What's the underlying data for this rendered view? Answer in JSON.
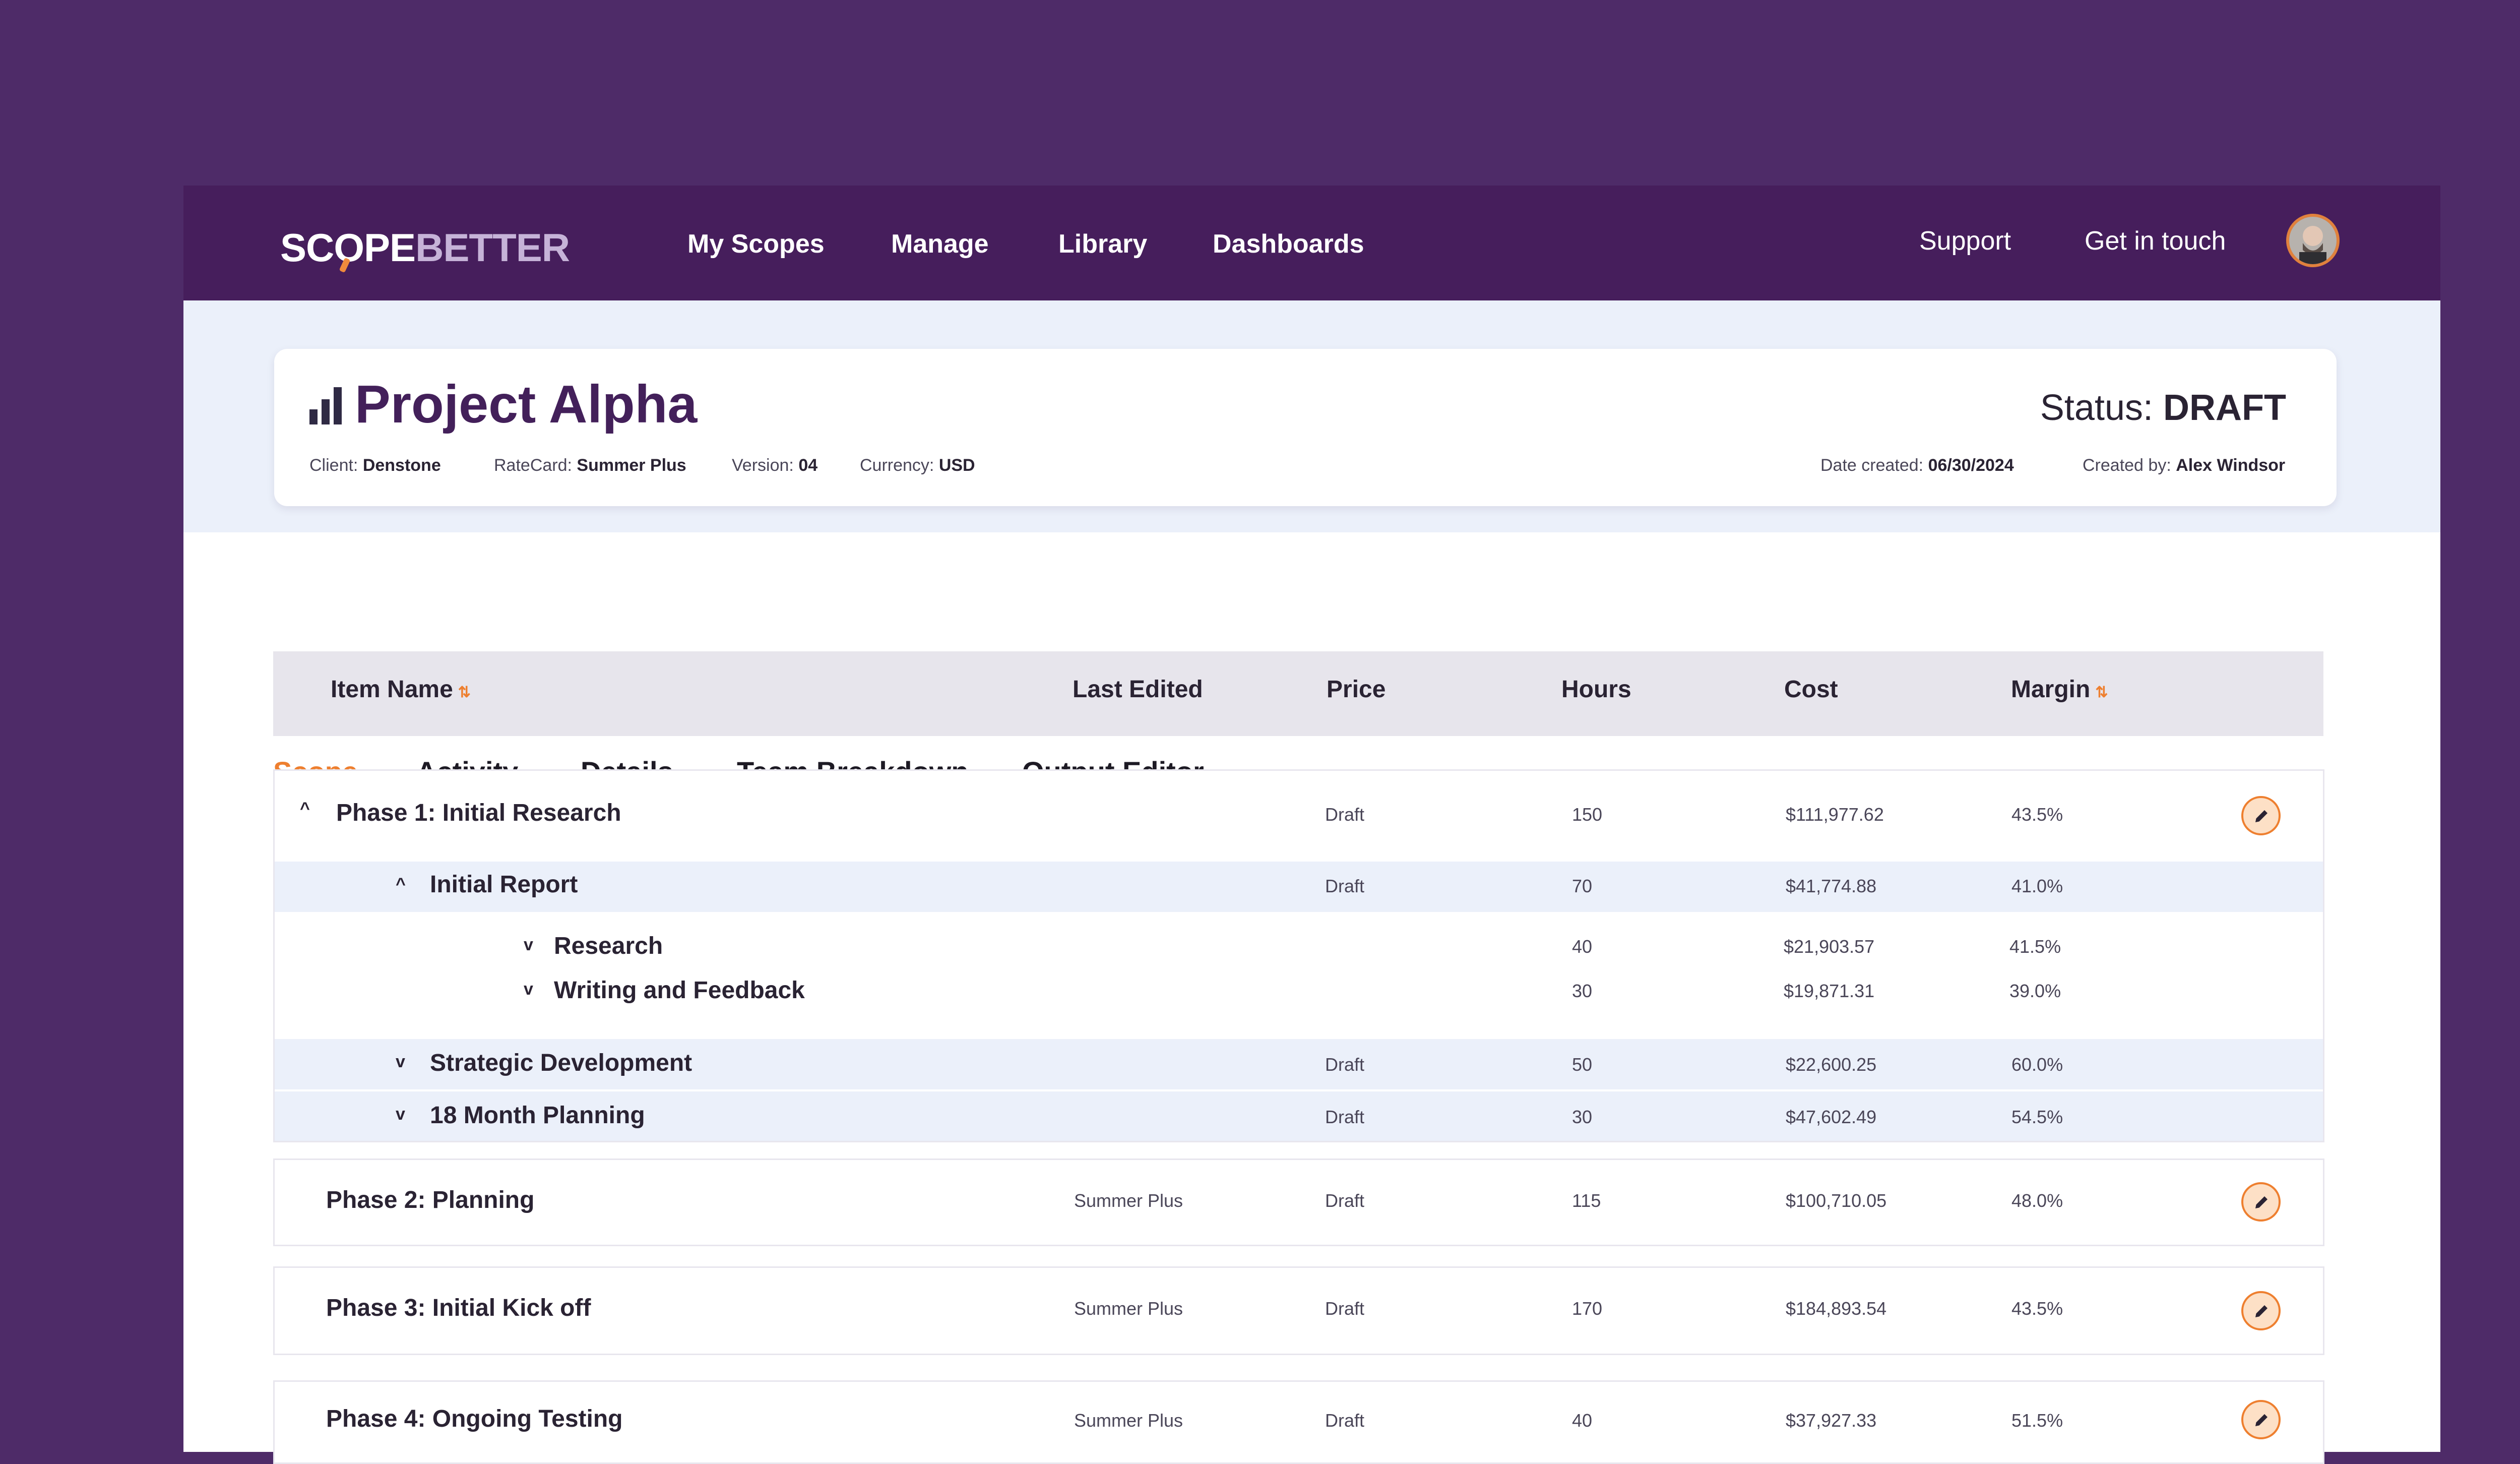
{
  "brand": {
    "part1": "SCOPE",
    "part2": "BETTER"
  },
  "nav": {
    "links": [
      "My Scopes",
      "Manage",
      "Library",
      "Dashboards"
    ],
    "support": "Support",
    "contact": "Get in touch"
  },
  "project": {
    "title": "Project Alpha",
    "status_label": "Status:",
    "status_value": "DRAFT",
    "client_label": "Client:",
    "client": "Denstone",
    "ratecard_label": "RateCard:",
    "ratecard": "Summer Plus",
    "version_label": "Version:",
    "version": "04",
    "currency_label": "Currency:",
    "currency": "USD",
    "date_label": "Date created:",
    "date": "06/30/2024",
    "creator_label": "Created by:",
    "creator": "Alex Windsor"
  },
  "tabs": [
    "Scope",
    "Activity",
    "Details",
    "Team Breakdown",
    "Output Editor"
  ],
  "columns": {
    "name": "Item Name",
    "last_edited": "Last Edited",
    "price": "Price",
    "hours": "Hours",
    "cost": "Cost",
    "margin": "Margin",
    "sort_glyph": "⇅"
  },
  "rows": {
    "phase1": {
      "name": "Phase 1: Initial Research",
      "price": "Draft",
      "hours": "150",
      "cost": "$111,977.62",
      "margin": "43.5%"
    },
    "report": {
      "name": "Initial Report",
      "price": "Draft",
      "hours": "70",
      "cost": "$41,774.88",
      "margin": "41.0%"
    },
    "research": {
      "name": "Research",
      "hours": "40",
      "cost": "$21,903.57",
      "margin": "41.5%"
    },
    "writing": {
      "name": "Writing and Feedback",
      "hours": "30",
      "cost": "$19,871.31",
      "margin": "39.0%"
    },
    "strategic": {
      "name": "Strategic Development",
      "price": "Draft",
      "hours": "50",
      "cost": "$22,600.25",
      "margin": "60.0%"
    },
    "planning18": {
      "name": "18 Month Planning",
      "price": "Draft",
      "hours": "30",
      "cost": "$47,602.49",
      "margin": "54.5%"
    },
    "phase2": {
      "name": "Phase 2: Planning",
      "edited": "Summer Plus",
      "price": "Draft",
      "hours": "115",
      "cost": "$100,710.05",
      "margin": "48.0%"
    },
    "phase3": {
      "name": "Phase 3: Initial Kick off",
      "edited": "Summer Plus",
      "price": "Draft",
      "hours": "170",
      "cost": "$184,893.54",
      "margin": "43.5%"
    },
    "phase4": {
      "name": "Phase 4: Ongoing Testing",
      "edited": "Summer Plus",
      "price": "Draft",
      "hours": "40",
      "cost": "$37,927.33",
      "margin": "51.5%"
    }
  },
  "colors": {
    "accent": "#ee7f2f",
    "nav_bg": "#461e5c",
    "page_bg": "#4e2b68",
    "band_bg": "#ebf0fa"
  }
}
